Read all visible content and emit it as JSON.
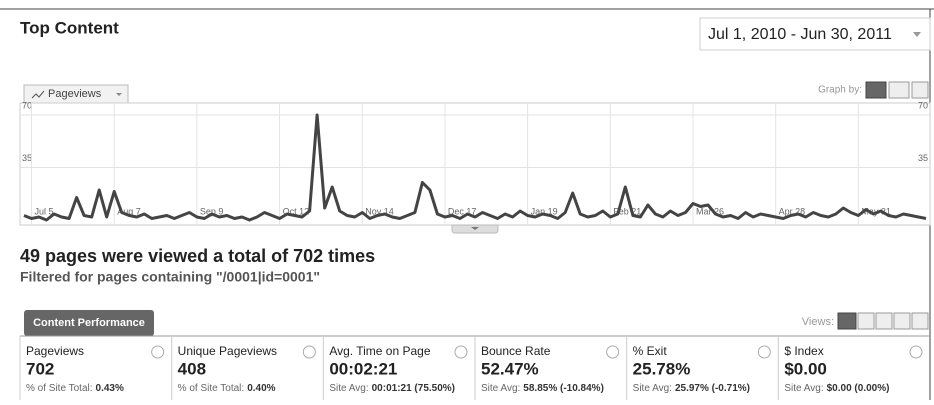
{
  "header": {
    "title": "Top Content",
    "date_range": "Jul 1, 2010 - Jun 30, 2011",
    "graph_by": "Graph by:"
  },
  "chart_data": {
    "type": "line",
    "tab": "Pageviews",
    "color": "#444444",
    "grid": true,
    "categories": [
      null,
      "Jul 5",
      null,
      null,
      null,
      null,
      null,
      null,
      null,
      null,
      null,
      null,
      "Aug 7",
      null,
      null,
      null,
      null,
      null,
      null,
      null,
      null,
      null,
      null,
      "Sep 9",
      null,
      null,
      null,
      null,
      null,
      null,
      null,
      null,
      null,
      null,
      "Oct 12",
      null,
      null,
      null,
      null,
      null,
      null,
      null,
      null,
      null,
      null,
      "Nov 14",
      null,
      null,
      null,
      null,
      null,
      null,
      null,
      null,
      null,
      null,
      "Dec 17",
      null,
      null,
      null,
      null,
      null,
      null,
      null,
      null,
      null,
      null,
      "Jan 19",
      null,
      null,
      null,
      null,
      null,
      null,
      null,
      null,
      null,
      null,
      "Feb 21",
      null,
      null,
      null,
      null,
      null,
      null,
      null,
      null,
      null,
      null,
      "Mar 26",
      null,
      null,
      null,
      null,
      null,
      null,
      null,
      null,
      null,
      null,
      "Apr 28",
      null,
      null,
      null,
      null,
      null,
      null,
      null,
      null,
      null,
      null,
      "May 31",
      null,
      null,
      null,
      null,
      null,
      null,
      null,
      null,
      null
    ],
    "values": [
      3,
      1,
      2,
      0,
      4,
      2,
      1,
      15,
      3,
      2,
      20,
      2,
      19,
      5,
      3,
      2,
      4,
      1,
      2,
      3,
      1,
      3,
      5,
      2,
      1,
      4,
      2,
      3,
      1,
      2,
      0,
      2,
      5,
      3,
      1,
      4,
      3,
      2,
      6,
      70,
      8,
      22,
      6,
      3,
      2,
      5,
      1,
      3,
      4,
      2,
      1,
      3,
      5,
      25,
      20,
      4,
      2,
      3,
      1,
      4,
      2,
      5,
      3,
      1,
      4,
      2,
      6,
      3,
      2,
      4,
      3,
      1,
      5,
      18,
      4,
      2,
      3,
      6,
      2,
      4,
      22,
      3,
      2,
      10,
      4,
      2,
      6,
      3,
      5,
      11,
      9,
      10,
      4,
      2,
      3,
      1,
      5,
      2,
      4,
      3,
      2,
      1,
      3,
      4,
      2,
      5,
      3,
      2,
      4,
      8,
      5,
      3,
      7,
      4,
      6,
      3,
      2,
      4,
      3,
      2,
      1
    ],
    "ylim": [
      0,
      70
    ],
    "yticks": [
      35,
      70
    ]
  },
  "summary": {
    "heading": "49 pages were viewed a total of 702 times",
    "filter": "Filtered for pages containing \"/0001|id=0001\""
  },
  "table": {
    "tab": "Content Performance",
    "views": "Views:",
    "metrics": [
      {
        "name": "Pageviews",
        "value": "702",
        "note_label": "% of Site Total:",
        "note_value": "0.43%"
      },
      {
        "name": "Unique Pageviews",
        "value": "408",
        "note_label": "% of Site Total:",
        "note_value": "0.40%"
      },
      {
        "name": "Avg. Time on Page",
        "value": "00:02:21",
        "note_label": "Site Avg:",
        "note_value": "00:01:21 (75.50%)"
      },
      {
        "name": "Bounce Rate",
        "value": "52.47%",
        "note_label": "Site Avg:",
        "note_value": "58.85% (-10.84%)"
      },
      {
        "name": "% Exit",
        "value": "25.78%",
        "note_label": "Site Avg:",
        "note_value": "25.97% (-0.71%)"
      },
      {
        "name": "$ Index",
        "value": "$0.00",
        "note_label": "Site Avg:",
        "note_value": "$0.00 (0.00%)"
      }
    ]
  }
}
